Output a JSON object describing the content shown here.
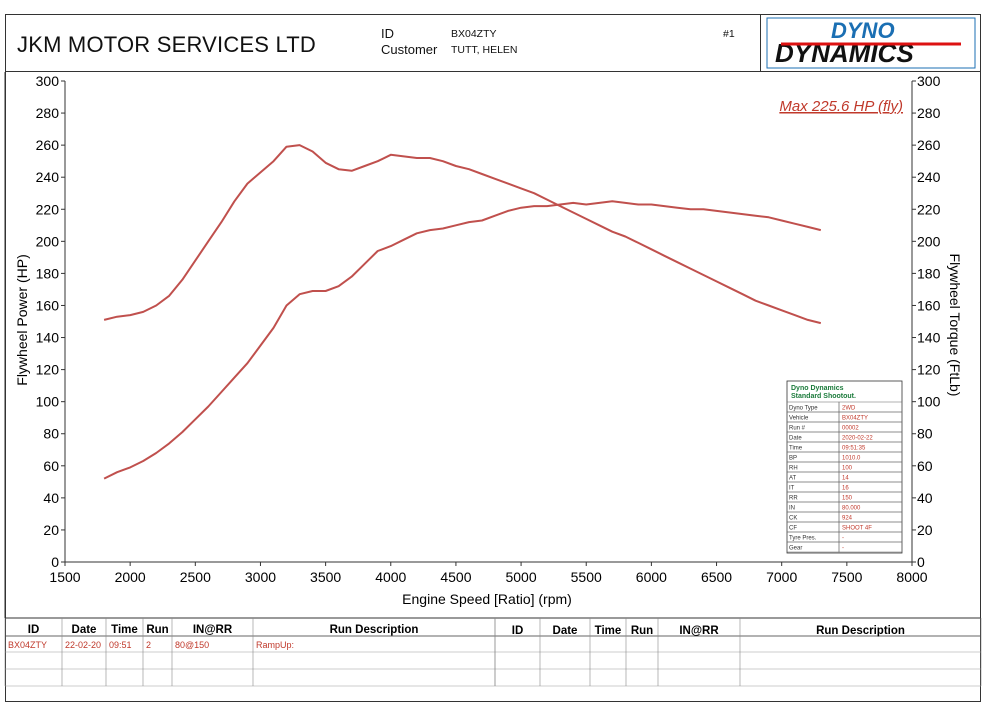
{
  "header": {
    "company": "JKM MOTOR SERVICES LTD",
    "id_label": "ID",
    "id_value": "BX04ZTY",
    "customer_label": "Customer",
    "customer_value": "TUTT, HELEN",
    "run_tag": "#1",
    "logo_line1": "DYNO",
    "logo_line2": "DYNAMICS"
  },
  "colors": {
    "curve": "#c0504d",
    "annotation": "#c0392b",
    "shootout_title": "#1a7a3a",
    "frame": "#333333"
  },
  "chart_data": {
    "type": "line",
    "annotation": "Max 225.6 HP (fly)",
    "xlabel": "Engine Speed [Ratio] (rpm)",
    "ylabel": "Flywheel Power (HP)",
    "y2label": "Flywheel Torque (FtLb)",
    "xlim": [
      1500,
      8000
    ],
    "ylim": [
      0,
      300
    ],
    "x_ticks": [
      "1500",
      "2000",
      "2500",
      "3000",
      "3500",
      "4000",
      "4500",
      "5000",
      "5500",
      "6000",
      "6500",
      "7000",
      "7500",
      "8000"
    ],
    "y_ticks": [
      "0",
      "20",
      "40",
      "60",
      "80",
      "100",
      "120",
      "140",
      "160",
      "180",
      "200",
      "220",
      "240",
      "260",
      "280",
      "300"
    ],
    "grid": false,
    "series": [
      {
        "x": [
          1800,
          1900,
          2000,
          2100,
          2200,
          2300,
          2400,
          2500,
          2600,
          2700,
          2800,
          2900,
          3000,
          3100,
          3200,
          3300,
          3400,
          3500,
          3600,
          3700,
          3800,
          3900,
          4000,
          4100,
          4200,
          4300,
          4400,
          4500,
          4600,
          4700,
          4800,
          4900,
          5000,
          5100,
          5200,
          5300,
          5400,
          5500,
          5600,
          5700,
          5800,
          5900,
          6000,
          6100,
          6200,
          6300,
          6400,
          6500,
          6600,
          6700,
          6800,
          6900,
          7000,
          7100,
          7200,
          7300
        ],
        "values": [
          52,
          56,
          59,
          63,
          68,
          74,
          81,
          89,
          97,
          106,
          115,
          124,
          135,
          146,
          160,
          167,
          169,
          169,
          172,
          178,
          186,
          194,
          197,
          201,
          205,
          207,
          208,
          210,
          212,
          213,
          216,
          219,
          221,
          222,
          222,
          223,
          224,
          223,
          224,
          225,
          224,
          223,
          223,
          222,
          221,
          220,
          220,
          219,
          218,
          217,
          216,
          215,
          213,
          211,
          209,
          207
        ]
      },
      {
        "x": [
          1800,
          1900,
          2000,
          2100,
          2200,
          2300,
          2400,
          2500,
          2600,
          2700,
          2800,
          2900,
          3000,
          3100,
          3200,
          3300,
          3400,
          3500,
          3600,
          3700,
          3800,
          3900,
          4000,
          4100,
          4200,
          4300,
          4400,
          4500,
          4600,
          4700,
          4800,
          4900,
          5000,
          5100,
          5200,
          5300,
          5400,
          5500,
          5600,
          5700,
          5800,
          5900,
          6000,
          6100,
          6200,
          6300,
          6400,
          6500,
          6600,
          6700,
          6800,
          6900,
          7000,
          7100,
          7200,
          7300
        ],
        "values": [
          151,
          153,
          154,
          156,
          160,
          166,
          176,
          188,
          200,
          212,
          225,
          236,
          243,
          250,
          259,
          260,
          256,
          249,
          245,
          244,
          247,
          250,
          254,
          253,
          252,
          252,
          250,
          247,
          245,
          242,
          239,
          236,
          233,
          230,
          226,
          222,
          218,
          214,
          210,
          206,
          203,
          199,
          195,
          191,
          187,
          183,
          179,
          175,
          171,
          167,
          163,
          160,
          157,
          154,
          151,
          149
        ]
      }
    ]
  },
  "shootout": {
    "title1": "Dyno Dynamics",
    "title2": "Standard Shootout.",
    "rows": [
      {
        "k": "Dyno Type",
        "v": "2WD"
      },
      {
        "k": "Vehicle",
        "v": "BX04ZTY"
      },
      {
        "k": "Run #",
        "v": "00002"
      },
      {
        "k": "Date",
        "v": "2020-02-22"
      },
      {
        "k": "Time",
        "v": "09:51:35"
      },
      {
        "k": "BP",
        "v": "1010.0"
      },
      {
        "k": "RH",
        "v": "100"
      },
      {
        "k": "AT",
        "v": "14"
      },
      {
        "k": "IT",
        "v": "16"
      },
      {
        "k": "RR",
        "v": "150"
      },
      {
        "k": "IN",
        "v": "80.000"
      },
      {
        "k": "CK",
        "v": "924"
      },
      {
        "k": "CF",
        "v": "SHOOT 4F"
      },
      {
        "k": "Tyre Pres.",
        "v": "-"
      },
      {
        "k": "Gear",
        "v": "-"
      }
    ]
  },
  "run_table": {
    "headers_left": [
      "ID",
      "Date",
      "Time",
      "Run",
      "IN@RR",
      "Run Description"
    ],
    "headers_right": [
      "ID",
      "Date",
      "Time",
      "Run",
      "IN@RR",
      "Run Description"
    ],
    "rows": [
      [
        "BX04ZTY",
        "22-02-20",
        "09:51",
        "2",
        "80@150",
        "RampUp:"
      ]
    ]
  }
}
